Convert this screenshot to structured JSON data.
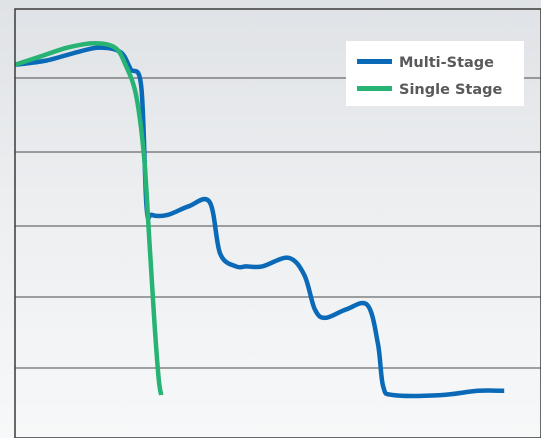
{
  "chart_data": {
    "type": "line",
    "title": "",
    "xlabel": "",
    "ylabel": "",
    "grid": true,
    "legend_position": "top-right",
    "xlim": [
      0,
      100
    ],
    "ylim": [
      0,
      100
    ],
    "series": [
      {
        "name": "Multi-Stage",
        "color": "#0a6ab8",
        "x": [
          0,
          6,
          12,
          16,
          20,
          22,
          24,
          25,
          26,
          29,
          33,
          37,
          39,
          42,
          44,
          47,
          52,
          55,
          57,
          59,
          63,
          67,
          69,
          70,
          72,
          81,
          88,
          93
        ],
        "y": [
          87,
          88,
          90,
          91,
          90,
          86,
          82,
          54,
          52,
          52,
          54,
          55,
          43,
          40,
          40,
          40,
          42,
          38,
          30,
          28,
          30,
          31,
          22,
          12,
          10,
          10,
          11,
          11
        ]
      },
      {
        "name": "Single Stage",
        "color": "#27b373",
        "x": [
          0,
          5,
          10,
          15,
          19,
          21,
          23,
          24.5,
          25.5,
          26.5,
          27.3,
          27.8
        ],
        "y": [
          87,
          89,
          91,
          92,
          91,
          87,
          80,
          66,
          47,
          27,
          14,
          10
        ]
      }
    ]
  }
}
